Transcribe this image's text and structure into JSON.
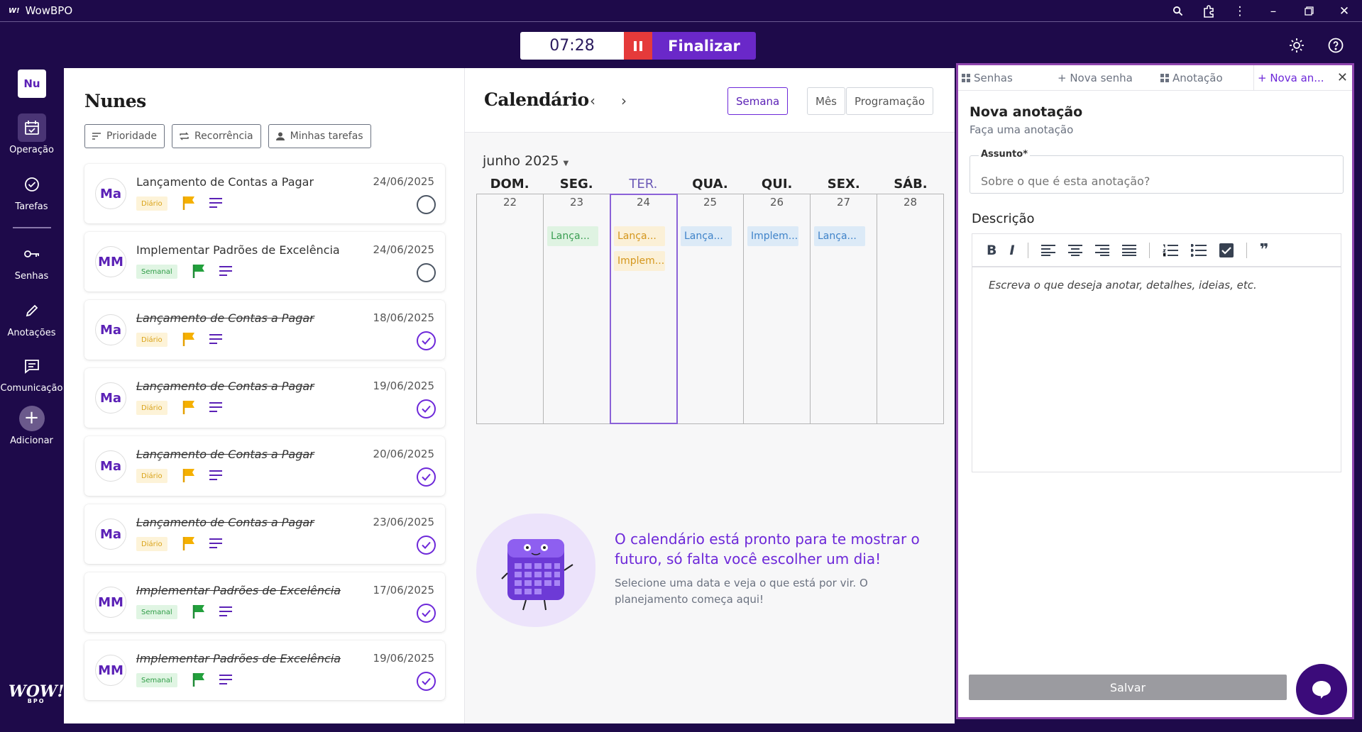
{
  "titlebar": {
    "app_name": "WowBPO",
    "logo": "W!"
  },
  "timer": {
    "value": "07:28",
    "finish_label": "Finalizar"
  },
  "sidebar": {
    "avatar": "Nu",
    "items": [
      {
        "label": "Operação"
      },
      {
        "label": "Tarefas"
      },
      {
        "label": "Senhas"
      },
      {
        "label": "Anotações"
      },
      {
        "label": "Comunicação"
      },
      {
        "label": "Adicionar"
      }
    ],
    "brand": "WOW!",
    "brand_sub": "BPO"
  },
  "tasks": {
    "title": "Nunes",
    "filters": [
      "Prioridade",
      "Recorrência",
      "Minhas tarefas"
    ],
    "items": [
      {
        "initials": "Ma",
        "title": "Lançamento de Contas a Pagar",
        "date": "24/06/2025",
        "badge": "Diário"
      },
      {
        "initials": "MM",
        "title": "Implementar Padrões de Excelência",
        "date": "24/06/2025",
        "badge": "Semanal"
      },
      {
        "initials": "Ma",
        "title": "Lançamento de Contas a Pagar",
        "date": "18/06/2025",
        "badge": "Diário"
      },
      {
        "initials": "Ma",
        "title": "Lançamento de Contas a Pagar",
        "date": "19/06/2025",
        "badge": "Diário"
      },
      {
        "initials": "Ma",
        "title": "Lançamento de Contas a Pagar",
        "date": "20/06/2025",
        "badge": "Diário"
      },
      {
        "initials": "Ma",
        "title": "Lançamento de Contas a Pagar",
        "date": "23/06/2025",
        "badge": "Diário"
      },
      {
        "initials": "MM",
        "title": "Implementar Padrões de Excelência",
        "date": "17/06/2025",
        "badge": "Semanal"
      },
      {
        "initials": "MM",
        "title": "Implementar Padrões de Excelência",
        "date": "19/06/2025",
        "badge": "Semanal"
      }
    ]
  },
  "calendar": {
    "title": "Calendário",
    "views": [
      "Semana",
      "Mês",
      "Programação"
    ],
    "month": "junho 2025",
    "days": [
      {
        "name": "DOM.",
        "num": "22"
      },
      {
        "name": "SEG.",
        "num": "23"
      },
      {
        "name": "TER.",
        "num": "24"
      },
      {
        "name": "QUA.",
        "num": "25"
      },
      {
        "name": "QUI.",
        "num": "26"
      },
      {
        "name": "SEX.",
        "num": "27"
      },
      {
        "name": "SÁB.",
        "num": "28"
      }
    ],
    "events": {
      "mon_1": "Lança...",
      "tue_1": "Lança...",
      "tue_2": "Implem...",
      "wed_1": "Lança...",
      "thu_1": "Implem...",
      "fri_1": "Lança..."
    },
    "empty_title": "O calendário está pronto para te mostrar o futuro, só falta você escolher um dia!",
    "empty_sub": "Selecione uma data e veja o que está por vir. O planejamento começa aqui!"
  },
  "note_panel": {
    "tabs": [
      "Senhas",
      "+ Nova senha",
      "Anotação",
      "+ Nova an..."
    ],
    "title": "Nova anotação",
    "subtitle": "Faça uma anotação",
    "subject_label": "Assunto*",
    "subject_placeholder": "Sobre o que é esta anotação?",
    "desc_label": "Descrição",
    "editor_placeholder": "Escreva o que deseja anotar, detalhes, ideias, etc.",
    "save_label": "Salvar"
  },
  "colors": {
    "accent": "#6d28d9",
    "background": "#1e0a4a",
    "daily": "#d9a31a",
    "weekly": "#2f9c47",
    "pause": "#e53a3a"
  }
}
